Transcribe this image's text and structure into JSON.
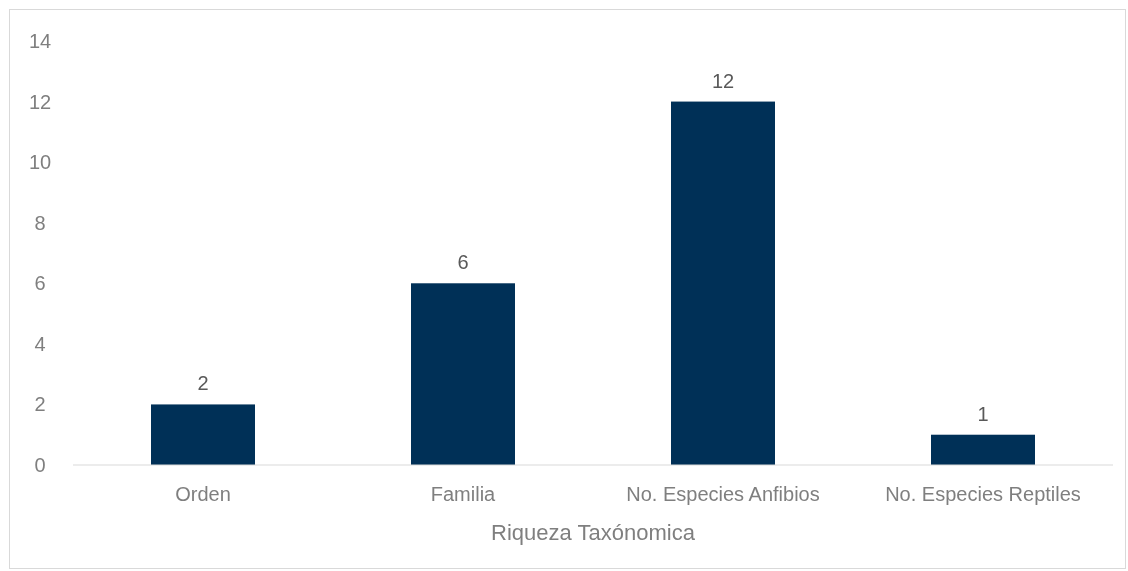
{
  "chart_data": {
    "type": "bar",
    "xlabel": "Riqueza Taxónomica",
    "categories": [
      "Orden",
      "Familia",
      "No. Especies Anfibios",
      "No. Especies Reptiles"
    ],
    "values": [
      2,
      6,
      12,
      1
    ],
    "color": "#003057",
    "ylim": [
      0,
      14
    ],
    "yticks": [
      0,
      2,
      4,
      6,
      8,
      10,
      12,
      14
    ],
    "grid": false,
    "data_labels": true
  }
}
